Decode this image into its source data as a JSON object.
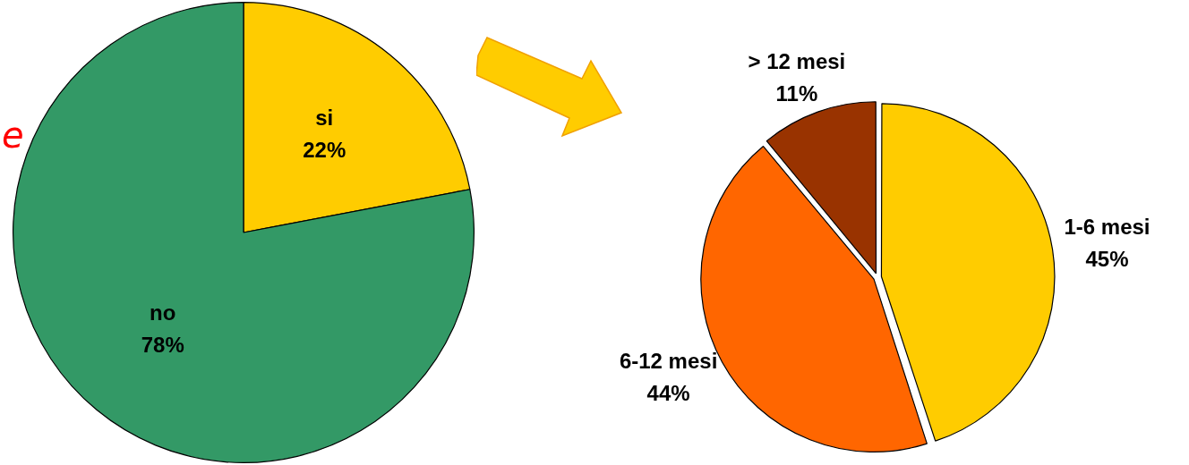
{
  "chart_data": [
    {
      "type": "pie",
      "categories": [
        "si",
        "no"
      ],
      "values": [
        22,
        78
      ],
      "colors": [
        "#ffcc00",
        "#339966"
      ],
      "value_labels": [
        "22%",
        "78%"
      ],
      "annotations": [
        "e"
      ]
    },
    {
      "type": "pie",
      "categories": [
        "1-6 mesi",
        "6-12 mesi",
        "> 12 mesi"
      ],
      "values": [
        45,
        44,
        11
      ],
      "colors": [
        "#ffcc00",
        "#ff6600",
        "#993300"
      ],
      "value_labels": [
        "45%",
        "44%",
        "11%"
      ]
    }
  ]
}
